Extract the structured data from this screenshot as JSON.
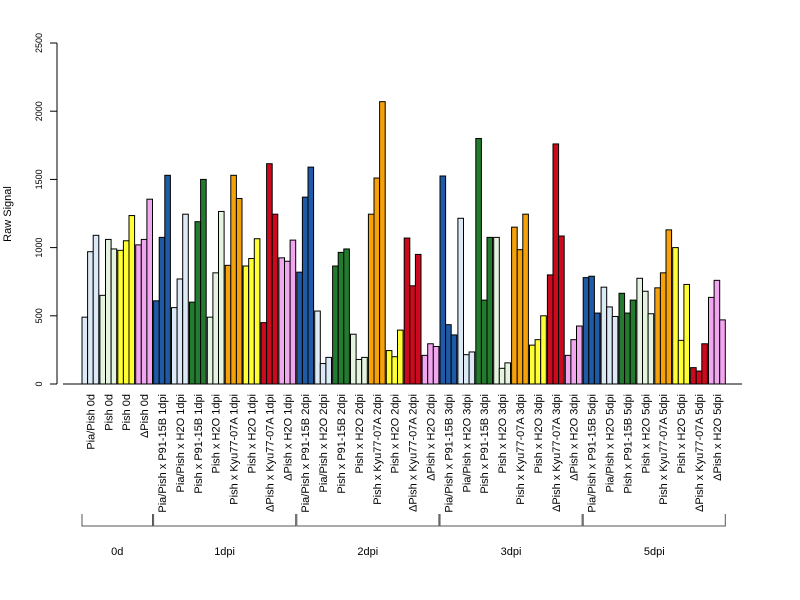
{
  "chart_data": {
    "type": "bar",
    "ylabel": "Raw Signal",
    "ylim": [
      0,
      2500
    ],
    "yticks": [
      0,
      500,
      1000,
      1500,
      2000,
      2500
    ],
    "colors": {
      "pale_blue": "#dce9f7",
      "dark_blue": "#1f5aa6",
      "dark_green": "#247a2e",
      "pale_green": "#e4f4df",
      "orange": "#f5a20a",
      "yellow": "#ffff33",
      "red": "#cc0a1e",
      "pink": "#f2a6f0"
    },
    "sample_groups": [
      {
        "label": "Pia/Pish 0d",
        "color": "pale_blue",
        "values": [
          490,
          970,
          1090
        ]
      },
      {
        "label": "Pish 0d",
        "color": "pale_green",
        "values": [
          650,
          1060,
          990
        ]
      },
      {
        "label": "Pish 0d",
        "color": "yellow",
        "values": [
          980,
          1050,
          1235
        ]
      },
      {
        "label": "ΔPish 0d",
        "color": "pink",
        "values": [
          1020,
          1060,
          1355
        ]
      },
      {
        "label": "Pia/Pish x P91-15B 1dpi",
        "color": "dark_blue",
        "values": [
          610,
          1075,
          1530
        ]
      },
      {
        "label": "Pia/Pish x H2O 1dpi",
        "color": "pale_blue",
        "values": [
          560,
          770,
          1245
        ]
      },
      {
        "label": "Pish x P91-15B 1dpi",
        "color": "dark_green",
        "values": [
          600,
          1190,
          1500
        ]
      },
      {
        "label": "Pish x H2O 1dpi",
        "color": "pale_green",
        "values": [
          490,
          815,
          1265
        ]
      },
      {
        "label": "Pish x Kyu77-07A 1dpi",
        "color": "orange",
        "values": [
          870,
          1530,
          1360
        ]
      },
      {
        "label": "Pish x H2O 1dpi",
        "color": "yellow",
        "values": [
          865,
          920,
          1065
        ]
      },
      {
        "label": "ΔPish x Kyu77-07A 1dpi",
        "color": "red",
        "values": [
          450,
          1615,
          1245
        ]
      },
      {
        "label": "ΔPish x H2O 1dpi",
        "color": "pink",
        "values": [
          925,
          900,
          1055
        ]
      },
      {
        "label": "Pia/Pish x P91-15B 2dpi",
        "color": "dark_blue",
        "values": [
          820,
          1370,
          1590
        ]
      },
      {
        "label": "Pia/Pish x H2O 2dpi",
        "color": "pale_blue",
        "values": [
          535,
          150,
          195
        ]
      },
      {
        "label": "Pish x P91-15B 2dpi",
        "color": "dark_green",
        "values": [
          865,
          965,
          990
        ]
      },
      {
        "label": "Pish x H2O 2dpi",
        "color": "pale_green",
        "values": [
          365,
          180,
          195
        ]
      },
      {
        "label": "Pish x Kyu77-07A 2dpi",
        "color": "orange",
        "values": [
          1245,
          1510,
          2070
        ]
      },
      {
        "label": "Pish x H2O 2dpi",
        "color": "yellow",
        "values": [
          245,
          200,
          395
        ]
      },
      {
        "label": "ΔPish x Kyu77-07A 2dpi",
        "color": "red",
        "values": [
          1070,
          720,
          950
        ]
      },
      {
        "label": "ΔPish x H2O 2dpi",
        "color": "pink",
        "values": [
          210,
          295,
          275
        ]
      },
      {
        "label": "Pia/Pish x P91-15B 3dpi",
        "color": "dark_blue",
        "values": [
          1525,
          435,
          360
        ]
      },
      {
        "label": "Pia/Pish x H2O 3dpi",
        "color": "pale_blue",
        "values": [
          1215,
          215,
          235
        ]
      },
      {
        "label": "Pish x P91-15B 3dpi",
        "color": "dark_green",
        "values": [
          1800,
          615,
          1075
        ]
      },
      {
        "label": "Pish x H2O 3dpi",
        "color": "pale_green",
        "values": [
          1075,
          115,
          155
        ]
      },
      {
        "label": "Pish x Kyu77-07A 3dpi",
        "color": "orange",
        "values": [
          1150,
          985,
          1245
        ]
      },
      {
        "label": "Pish x H2O 3dpi",
        "color": "yellow",
        "values": [
          285,
          325,
          500
        ]
      },
      {
        "label": "ΔPish x Kyu77-07A 3dpi",
        "color": "red",
        "values": [
          800,
          1760,
          1085
        ]
      },
      {
        "label": "ΔPish x H2O 3dpi",
        "color": "pink",
        "values": [
          210,
          325,
          425
        ]
      },
      {
        "label": "Pia/Pish x P91-15B 5dpi",
        "color": "dark_blue",
        "values": [
          780,
          790,
          520
        ]
      },
      {
        "label": "Pia/Pish x H2O 5dpi",
        "color": "pale_blue",
        "values": [
          710,
          565,
          495
        ]
      },
      {
        "label": "Pish x P91-15B 5dpi",
        "color": "dark_green",
        "values": [
          665,
          520,
          615
        ]
      },
      {
        "label": "Pish x H2O 5dpi",
        "color": "pale_green",
        "values": [
          775,
          680,
          515
        ]
      },
      {
        "label": "Pish x Kyu77-07A 5dpi",
        "color": "orange",
        "values": [
          705,
          815,
          1130
        ]
      },
      {
        "label": "Pish x H2O 5dpi",
        "color": "yellow",
        "values": [
          1000,
          320,
          730
        ]
      },
      {
        "label": "ΔPish x Kyu77-07A 5dpi",
        "color": "red",
        "values": [
          120,
          95,
          295
        ]
      },
      {
        "label": "ΔPish x H2O 5dpi",
        "color": "pink",
        "values": [
          635,
          760,
          470
        ]
      }
    ],
    "time_groups": [
      {
        "label": "0d",
        "first": 0,
        "last": 3
      },
      {
        "label": "1dpi",
        "first": 4,
        "last": 11
      },
      {
        "label": "2dpi",
        "first": 12,
        "last": 19
      },
      {
        "label": "3dpi",
        "first": 20,
        "last": 27
      },
      {
        "label": "5dpi",
        "first": 28,
        "last": 35
      }
    ],
    "grid": false,
    "legend": "none"
  }
}
